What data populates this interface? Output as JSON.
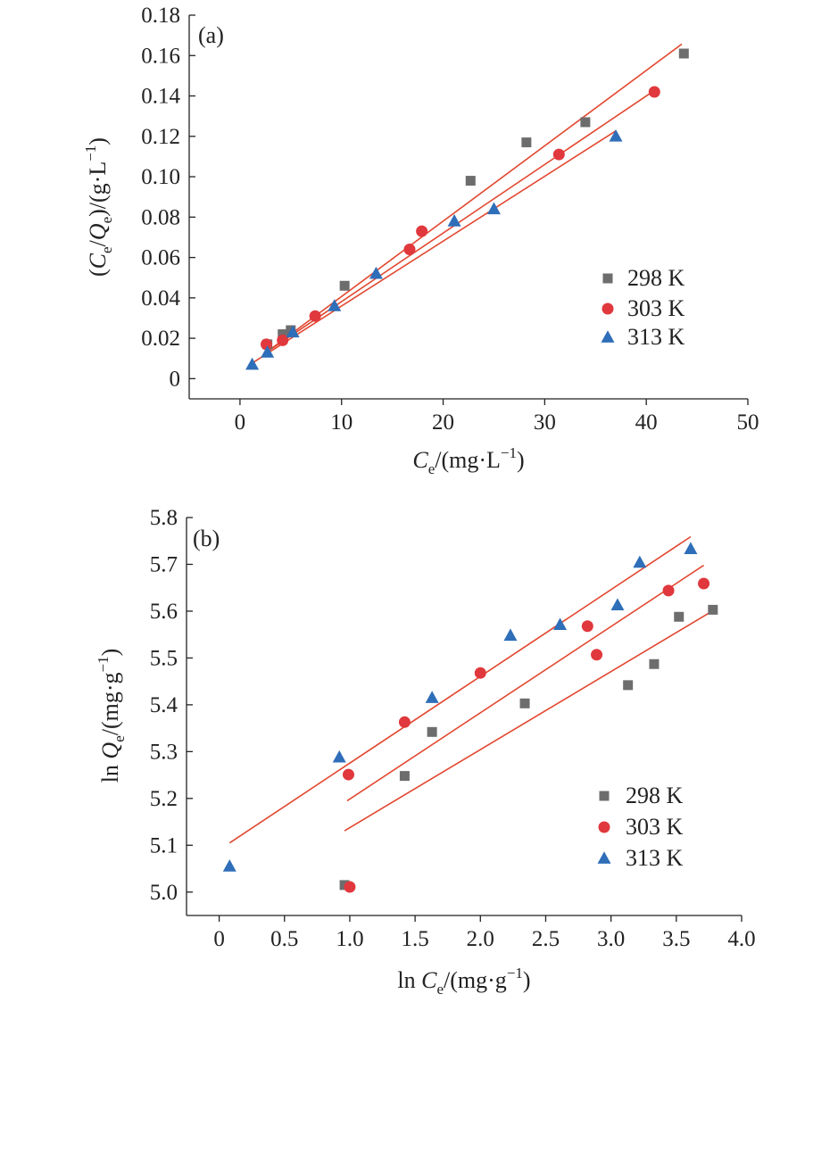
{
  "chart_data": [
    {
      "type": "scatter",
      "panel_label": "(a)",
      "xlabel": {
        "parts": [
          {
            "t": "C"
          },
          {
            "t": "e",
            "sub": true
          },
          {
            "t": "/(mg·L"
          },
          {
            "t": "−1",
            "sup": true
          },
          {
            "t": ")"
          }
        ]
      },
      "ylabel": {
        "parts": [
          {
            "t": "("
          },
          {
            "t": "C"
          },
          {
            "t": "e",
            "sub": true
          },
          {
            "t": "/"
          },
          {
            "t": "Q"
          },
          {
            "t": "e",
            "sub": true
          },
          {
            "t": ")/(g·L"
          },
          {
            "t": "−1",
            "sup": true
          },
          {
            "t": ")"
          }
        ]
      },
      "xlim": [
        -5,
        50
      ],
      "ylim": [
        -0.01,
        0.18
      ],
      "xticks": [
        0,
        10,
        20,
        30,
        40,
        50
      ],
      "xtick_labels": [
        "0",
        "10",
        "20",
        "30",
        "40",
        "50"
      ],
      "yticks": [
        0,
        0.02,
        0.04,
        0.06,
        0.08,
        0.1,
        0.12,
        0.14,
        0.16,
        0.18
      ],
      "ytick_labels": [
        "0",
        "0.02",
        "0.04",
        "0.06",
        "0.08",
        "0.10",
        "0.12",
        "0.14",
        "0.16",
        "0.18"
      ],
      "legend_position": "right",
      "series": [
        {
          "name": "298 K",
          "marker": "square",
          "color": "#6d6d6d",
          "x": [
            2.7,
            4.2,
            5.0,
            10.3,
            22.7,
            28.2,
            34.0,
            43.7
          ],
          "y": [
            0.017,
            0.022,
            0.024,
            0.046,
            0.098,
            0.117,
            0.127,
            0.161
          ],
          "fit": {
            "x": [
              2.5,
              43.5
            ],
            "y": [
              0.0127,
              0.1657
            ]
          }
        },
        {
          "name": "303 K",
          "marker": "circle",
          "color": "#e0383d",
          "x": [
            2.6,
            4.2,
            7.4,
            16.7,
            17.9,
            31.4,
            40.8
          ],
          "y": [
            0.017,
            0.019,
            0.031,
            0.064,
            0.073,
            0.111,
            0.142
          ],
          "fit": {
            "x": [
              2.5,
              40.8
            ],
            "y": [
              0.0127,
              0.1427
            ]
          }
        },
        {
          "name": "313 K",
          "marker": "triangle",
          "color": "#2f6eb8",
          "x": [
            1.2,
            2.7,
            5.2,
            9.3,
            13.4,
            21.1,
            25.0,
            37.0
          ],
          "y": [
            0.007,
            0.013,
            0.023,
            0.036,
            0.052,
            0.078,
            0.084,
            0.12
          ],
          "fit": {
            "x": [
              1.2,
              37.0
            ],
            "y": [
              0.0077,
              0.1227
            ]
          }
        }
      ]
    },
    {
      "type": "scatter",
      "panel_label": "(b)",
      "xlabel": {
        "parts": [
          {
            "t": "ln "
          },
          {
            "t": "C"
          },
          {
            "t": "e",
            "sub": true
          },
          {
            "t": "/(mg·g"
          },
          {
            "t": "−1",
            "sup": true
          },
          {
            "t": ")"
          }
        ]
      },
      "ylabel": {
        "parts": [
          {
            "t": "ln "
          },
          {
            "t": "Q"
          },
          {
            "t": "e",
            "sub": true
          },
          {
            "t": "/(mg·g"
          },
          {
            "t": "−1",
            "sup": true
          },
          {
            "t": ")"
          }
        ]
      },
      "xlim": [
        -0.25,
        4.0
      ],
      "ylim": [
        4.95,
        5.8
      ],
      "xticks": [
        0,
        0.5,
        1.0,
        1.5,
        2.0,
        2.5,
        3.0,
        3.5,
        4.0
      ],
      "xtick_labels": [
        "0",
        "0.5",
        "1.0",
        "1.5",
        "2.0",
        "2.5",
        "3.0",
        "3.5",
        "4.0"
      ],
      "yticks": [
        5.0,
        5.1,
        5.2,
        5.3,
        5.4,
        5.5,
        5.6,
        5.7,
        5.8
      ],
      "ytick_labels": [
        "5.0",
        "5.1",
        "5.2",
        "5.3",
        "5.4",
        "5.5",
        "5.6",
        "5.7",
        "5.8"
      ],
      "legend_position": "right",
      "series": [
        {
          "name": "298 K",
          "marker": "square",
          "color": "#6d6d6d",
          "x": [
            0.96,
            1.42,
            1.63,
            2.34,
            3.13,
            3.33,
            3.52,
            3.78
          ],
          "y": [
            5.015,
            5.248,
            5.342,
            5.403,
            5.442,
            5.487,
            5.588,
            5.603
          ],
          "fit": {
            "x": [
              0.96,
              3.78
            ],
            "y": [
              5.131,
              5.601
            ]
          }
        },
        {
          "name": "303 K",
          "marker": "circle",
          "color": "#e0383d",
          "x": [
            0.99,
            1.0,
            1.42,
            2.0,
            2.82,
            2.89,
            3.44,
            3.71
          ],
          "y": [
            5.251,
            5.011,
            5.363,
            5.468,
            5.568,
            5.507,
            5.644,
            5.659
          ],
          "fit": {
            "x": [
              0.98,
              3.71
            ],
            "y": [
              5.195,
              5.698
            ]
          }
        },
        {
          "name": "313 K",
          "marker": "triangle",
          "color": "#2f6eb8",
          "x": [
            0.08,
            0.92,
            1.63,
            2.23,
            2.61,
            3.05,
            3.22,
            3.61
          ],
          "y": [
            5.055,
            5.288,
            5.415,
            5.548,
            5.571,
            5.613,
            5.704,
            5.733
          ],
          "fit": {
            "x": [
              0.08,
              3.61
            ],
            "y": [
              5.105,
              5.759
            ]
          }
        }
      ]
    }
  ]
}
